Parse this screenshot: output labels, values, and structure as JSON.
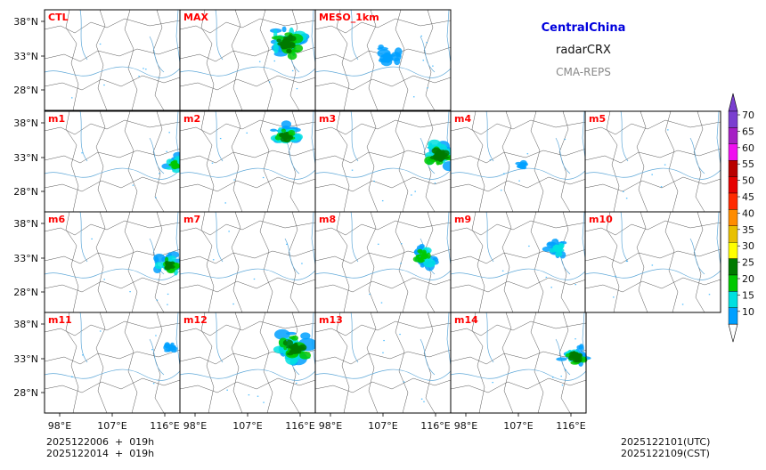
{
  "header": {
    "region": "CentralChina",
    "product": "radarCRX",
    "system": "CMA-REPS"
  },
  "axes": {
    "lat_ticks": [
      "38°N",
      "33°N",
      "28°N"
    ],
    "lon_ticks": [
      "98°E",
      "107°E",
      "116°E"
    ]
  },
  "panels": [
    {
      "label": "CTL"
    },
    {
      "label": "MAX"
    },
    {
      "label": "MESO_1km"
    },
    {
      "label": "m1"
    },
    {
      "label": "m2"
    },
    {
      "label": "m3"
    },
    {
      "label": "m4"
    },
    {
      "label": "m5"
    },
    {
      "label": "m6"
    },
    {
      "label": "m7"
    },
    {
      "label": "m8"
    },
    {
      "label": "m9"
    },
    {
      "label": "m10"
    },
    {
      "label": "m11"
    },
    {
      "label": "m12"
    },
    {
      "label": "m13"
    },
    {
      "label": "m14"
    }
  ],
  "colorbar": {
    "levels": [
      "70",
      "65",
      "60",
      "55",
      "50",
      "45",
      "40",
      "35",
      "30",
      "25",
      "20",
      "15",
      "10"
    ],
    "colors": [
      "#7a3fd0",
      "#a51fc4",
      "#f00ff0",
      "#b80000",
      "#e60000",
      "#ff2a00",
      "#ff8c00",
      "#e8c000",
      "#ffff00",
      "#007a00",
      "#00c800",
      "#00e0e0",
      "#00a0ff"
    ]
  },
  "footer": {
    "init_line_1": "2025122006  +  019h",
    "init_line_2": "2025122014  +  019h",
    "valid_utc": "2025122101(UTC)",
    "valid_cst": "2025122109(CST)"
  },
  "style": {
    "label_color": "#ff0000",
    "border_color": "#555555",
    "river_color": "#5fa8d8"
  }
}
